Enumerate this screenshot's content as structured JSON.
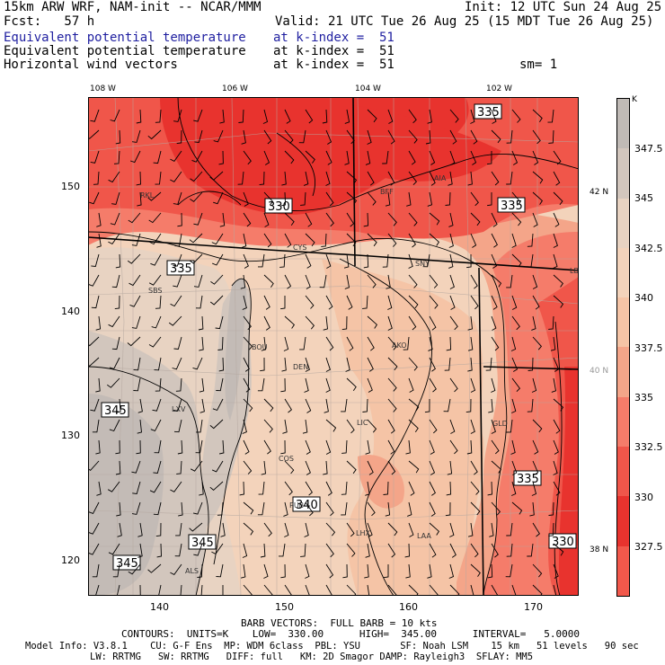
{
  "header": {
    "title_left": "15km ARW WRF, NAM-init -- NCAR/MMM",
    "init": "Init: 12 UTC Sun 24 Aug 25",
    "fcst": "Fcst:   57 h",
    "valid": "Valid: 21 UTC Tue 26 Aug 25 (15 MDT Tue 26 Aug 25)",
    "layers": [
      {
        "name": "Equivalent potential temperature",
        "level": "at k-index =  51",
        "extra": ""
      },
      {
        "name": "Equivalent potential temperature",
        "level": "at k-index =  51",
        "extra": ""
      },
      {
        "name": "Horizontal wind vectors",
        "level": "at k-index =  51",
        "extra": "sm= 1"
      }
    ]
  },
  "map": {
    "lon_labels": [
      "108 W",
      "106 W",
      "104 W",
      "102 W"
    ],
    "lat_labels": [
      "42 N",
      "40 N",
      "38 N"
    ],
    "grid_y_labels": [
      "150",
      "140",
      "130",
      "120"
    ],
    "grid_x_labels": [
      "140",
      "150",
      "160",
      "170"
    ],
    "stations": [
      "RKL",
      "BFF",
      "AIA",
      "CYS",
      "SNY",
      "LBF",
      "SBS",
      "BOU",
      "DEN",
      "AKO",
      "LXV",
      "LIC",
      "GLD",
      "COS",
      "PUB",
      "LHX",
      "LAA",
      "ALS"
    ],
    "contour_labels": [
      "335",
      "330",
      "335",
      "335",
      "345",
      "340",
      "345",
      "345",
      "335",
      "330"
    ],
    "colors": {
      "rd1": "#e8332e",
      "rd2": "#f0564a",
      "rd3": "#f57c6a",
      "pk1": "#f4a589",
      "pk2": "#f5c4a6",
      "pe1": "#f3d3bb",
      "tn1": "#e8d3c2",
      "gy1": "#d2c6bd",
      "gy2": "#c3bbb6"
    }
  },
  "colorbar": {
    "unit": "K",
    "labels": [
      "347.5",
      "345",
      "342.5",
      "340",
      "337.5",
      "335",
      "332.5",
      "330",
      "327.5"
    ],
    "colors": [
      "#c0bab6",
      "#d2c6bd",
      "#e8d3c2",
      "#f3d3bb",
      "#f5c4a6",
      "#f4a589",
      "#f57c6a",
      "#f0564a",
      "#e8332e"
    ]
  },
  "footer": {
    "barb": "BARB VECTORS:  FULL BARB = 10 kts",
    "contours": "CONTOURS:  UNITS=K    LOW=  330.00      HIGH=  345.00      INTERVAL=   5.0000",
    "model1": "Model Info: V3.8.1    CU: G-F Ens  MP: WDM 6class  PBL: YSU       SF: Noah LSM    15 km   51 levels   90 sec",
    "model2": "LW: RRTMG   SW: RRTMG   DIFF: full   KM: 2D Smagor DAMP: Rayleigh3  SFLAY: MM5"
  }
}
